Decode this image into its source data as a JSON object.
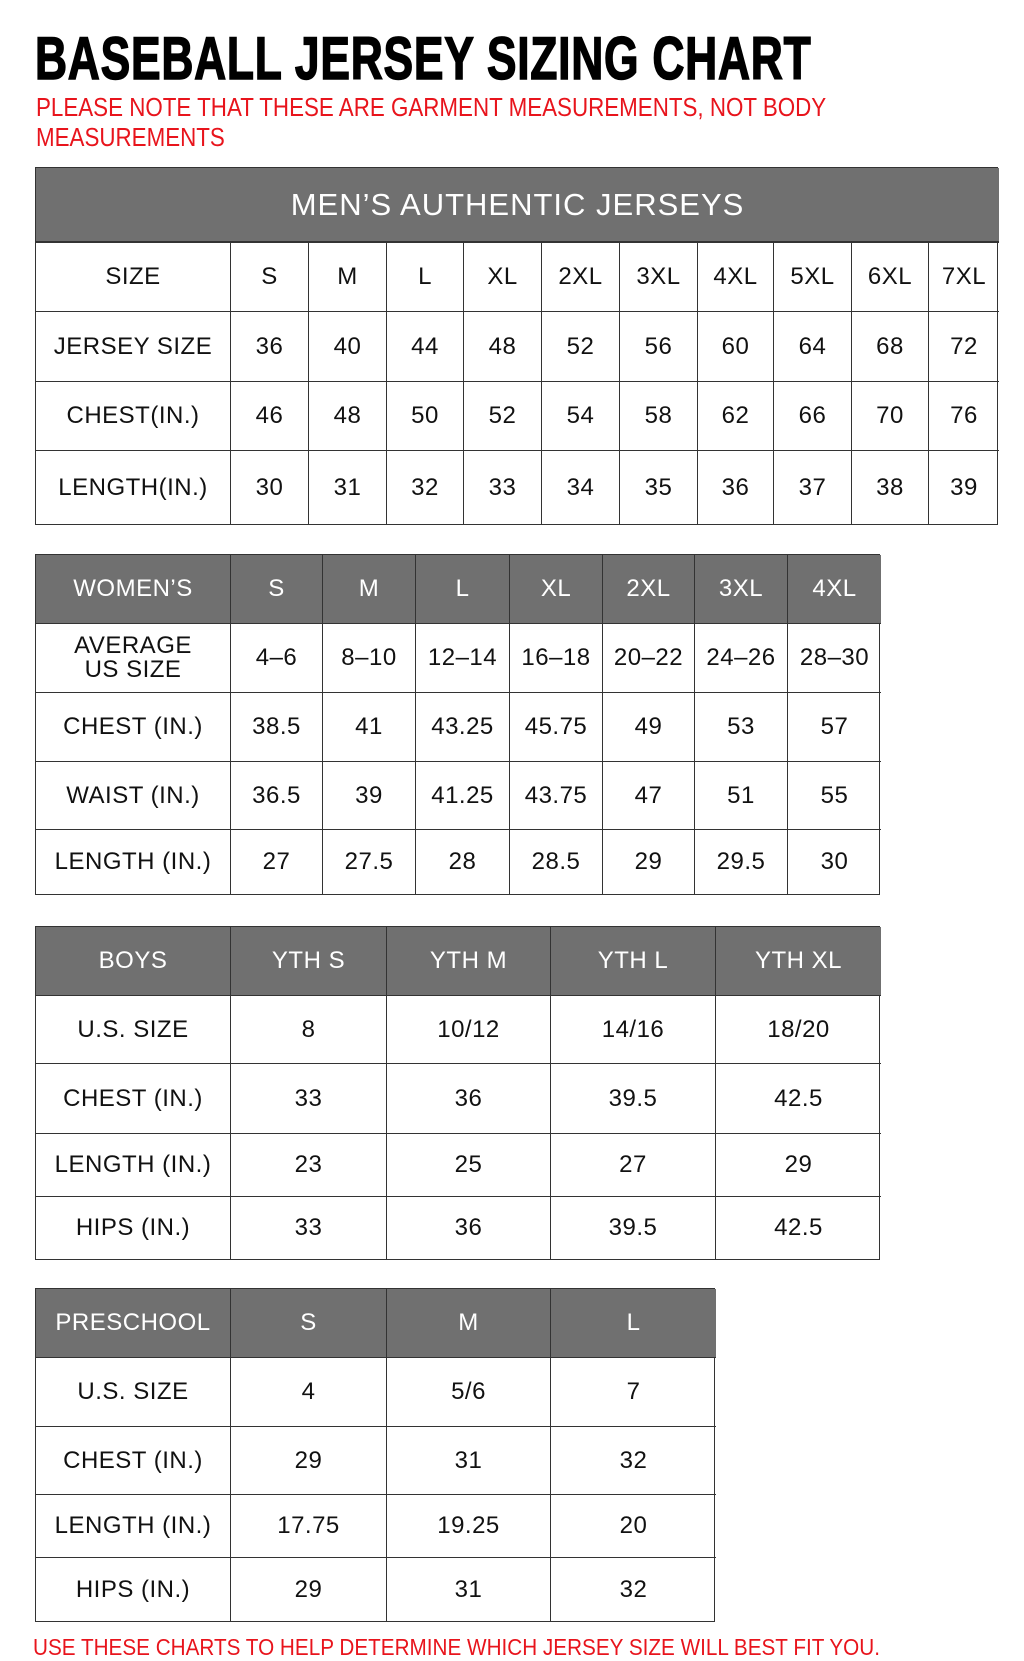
{
  "title": "BASEBALL JERSEY SIZING CHART",
  "note_line1": "PLEASE NOTE THAT THESE ARE GARMENT MEASUREMENTS, NOT BODY",
  "note_line2": "MEASUREMENTS",
  "footer": "USE THESE CHARTS TO HELP DETERMINE WHICH JERSEY SIZE WILL BEST FIT YOU.",
  "colors": {
    "header_bg": "#707070",
    "note_red": "#e8141c",
    "border": "#333333"
  },
  "tables": [
    {
      "id": "mens",
      "banner": "MEN’S AUTHENTIC JERSEYS",
      "header_gray": false,
      "rows": [
        [
          "SIZE",
          "S",
          "M",
          "L",
          "XL",
          "2XL",
          "3XL",
          "4XL",
          "5XL",
          "6XL",
          "7XL"
        ],
        [
          "JERSEY SIZE",
          "36",
          "40",
          "44",
          "48",
          "52",
          "56",
          "60",
          "64",
          "68",
          "72"
        ],
        [
          "CHEST(IN.)",
          "46",
          "48",
          "50",
          "52",
          "54",
          "58",
          "62",
          "66",
          "70",
          "76"
        ],
        [
          "LENGTH(IN.)",
          "30",
          "31",
          "32",
          "33",
          "34",
          "35",
          "36",
          "37",
          "38",
          "39"
        ]
      ]
    },
    {
      "id": "womens",
      "header_gray": true,
      "rows": [
        [
          "WOMEN’S",
          "S",
          "M",
          "L",
          "XL",
          "2XL",
          "3XL",
          "4XL"
        ],
        [
          "AVERAGE\nUS SIZE",
          "4–6",
          "8–10",
          "12–14",
          "16–18",
          "20–22",
          "24–26",
          "28–30"
        ],
        [
          "CHEST (IN.)",
          "38.5",
          "41",
          "43.25",
          "45.75",
          "49",
          "53",
          "57"
        ],
        [
          "WAIST (IN.)",
          "36.5",
          "39",
          "41.25",
          "43.75",
          "47",
          "51",
          "55"
        ],
        [
          "LENGTH (IN.)",
          "27",
          "27.5",
          "28",
          "28.5",
          "29",
          "29.5",
          "30"
        ]
      ]
    },
    {
      "id": "boys",
      "header_gray": true,
      "rows": [
        [
          "BOYS",
          "YTH S",
          "YTH M",
          "YTH L",
          "YTH XL"
        ],
        [
          "U.S. SIZE",
          "8",
          "10/12",
          "14/16",
          "18/20"
        ],
        [
          "CHEST (IN.)",
          "33",
          "36",
          "39.5",
          "42.5"
        ],
        [
          "LENGTH (IN.)",
          "23",
          "25",
          "27",
          "29"
        ],
        [
          "HIPS (IN.)",
          "33",
          "36",
          "39.5",
          "42.5"
        ]
      ]
    },
    {
      "id": "preschool",
      "header_gray": true,
      "rows": [
        [
          "PRESCHOOL",
          "S",
          "M",
          "L"
        ],
        [
          "U.S. SIZE",
          "4",
          "5/6",
          "7"
        ],
        [
          "CHEST (IN.)",
          "29",
          "31",
          "32"
        ],
        [
          "LENGTH (IN.)",
          "17.75",
          "19.25",
          "20"
        ],
        [
          "HIPS (IN.)",
          "29",
          "31",
          "32"
        ]
      ]
    }
  ]
}
